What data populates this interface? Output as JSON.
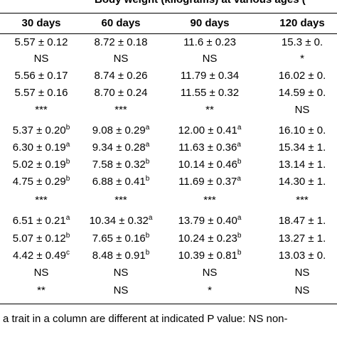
{
  "table": {
    "title": "Body weight (kilograms) at various ages (",
    "columns": [
      "30 days",
      "60 days",
      "90 days",
      "120 days"
    ],
    "rows": [
      [
        "5.57 ± 0.12",
        "8.72 ± 0.18",
        "11.6 ± 0.23",
        "15.3 ± 0."
      ],
      [
        "NS",
        "NS",
        "NS",
        "*"
      ],
      [
        "5.56 ± 0.17",
        "8.74 ± 0.26",
        "11.79 ± 0.34",
        "16.02 ± 0."
      ],
      [
        "5.57 ± 0.16",
        "8.70 ± 0.24",
        "11.55 ± 0.32",
        "14.59 ± 0."
      ],
      [
        "***",
        "***",
        "**",
        "NS"
      ],
      [
        {
          "text": "5.37 ± 0.20",
          "sup": "b"
        },
        {
          "text": "9.08 ± 0.29",
          "sup": "a"
        },
        {
          "text": "12.00 ± 0.41",
          "sup": "a"
        },
        "16.10 ± 0."
      ],
      [
        {
          "text": "6.30 ± 0.19",
          "sup": "a"
        },
        {
          "text": "9.34 ± 0.28",
          "sup": "a"
        },
        {
          "text": "11.63 ± 0.36",
          "sup": "a"
        },
        "15.34 ± 1."
      ],
      [
        {
          "text": "5.02 ± 0.19",
          "sup": "b"
        },
        {
          "text": "7.58 ± 0.32",
          "sup": "b"
        },
        {
          "text": "10.14 ± 0.46",
          "sup": "b"
        },
        "13.14 ± 1."
      ],
      [
        {
          "text": "4.75 ± 0.29",
          "sup": "b"
        },
        {
          "text": "6.88 ± 0.41",
          "sup": "b"
        },
        {
          "text": "11.69 ± 0.37",
          "sup": "a"
        },
        "14.30 ± 1."
      ],
      [
        "***",
        "***",
        "***",
        "***"
      ],
      [
        {
          "text": "6.51 ± 0.21",
          "sup": "a"
        },
        {
          "text": "10.34 ± 0.32",
          "sup": "a"
        },
        {
          "text": "13.79 ± 0.40",
          "sup": "a"
        },
        "18.47 ± 1."
      ],
      [
        {
          "text": "5.07 ± 0.12",
          "sup": "b"
        },
        {
          "text": "7.65 ± 0.16",
          "sup": "b"
        },
        {
          "text": "10.24 ± 0.23",
          "sup": "b"
        },
        "13.27 ± 1."
      ],
      [
        {
          "text": "4.42 ± 0.49",
          "sup": "c"
        },
        {
          "text": "8.48 ± 0.91",
          "sup": "b"
        },
        {
          "text": "10.39 ± 0.81",
          "sup": "b"
        },
        "13.03 ± 0."
      ],
      [
        "NS",
        "NS",
        "NS",
        "NS"
      ],
      [
        "**",
        "NS",
        "*",
        "NS"
      ]
    ],
    "footnote": "a trait in a column are different at indicated P value: NS non-"
  }
}
